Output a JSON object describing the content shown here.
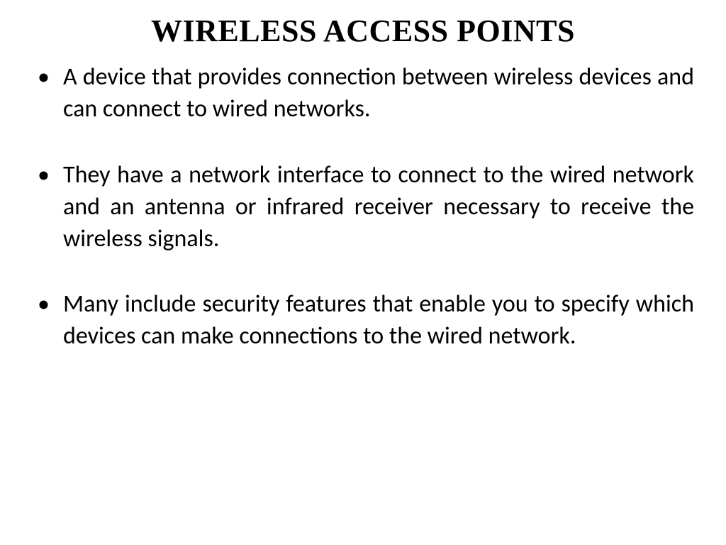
{
  "slide": {
    "title": "WIRELESS ACCESS POINTS",
    "title_font_family": "Times New Roman",
    "title_font_size": 44,
    "title_font_weight": "bold",
    "title_color": "#000000",
    "body_font_family": "Calibri",
    "body_font_size": 34,
    "body_color": "#000000",
    "background_color": "#ffffff",
    "text_align": "justify",
    "bullets": [
      "A device that provides connection between wireless devices and can connect to wired networks.",
      "They have a network interface to connect to the wired network and an antenna or infrared receiver necessary to receive the wireless signals.",
      "Many include security features that enable you to specify which devices can make connections to the wired network."
    ]
  }
}
